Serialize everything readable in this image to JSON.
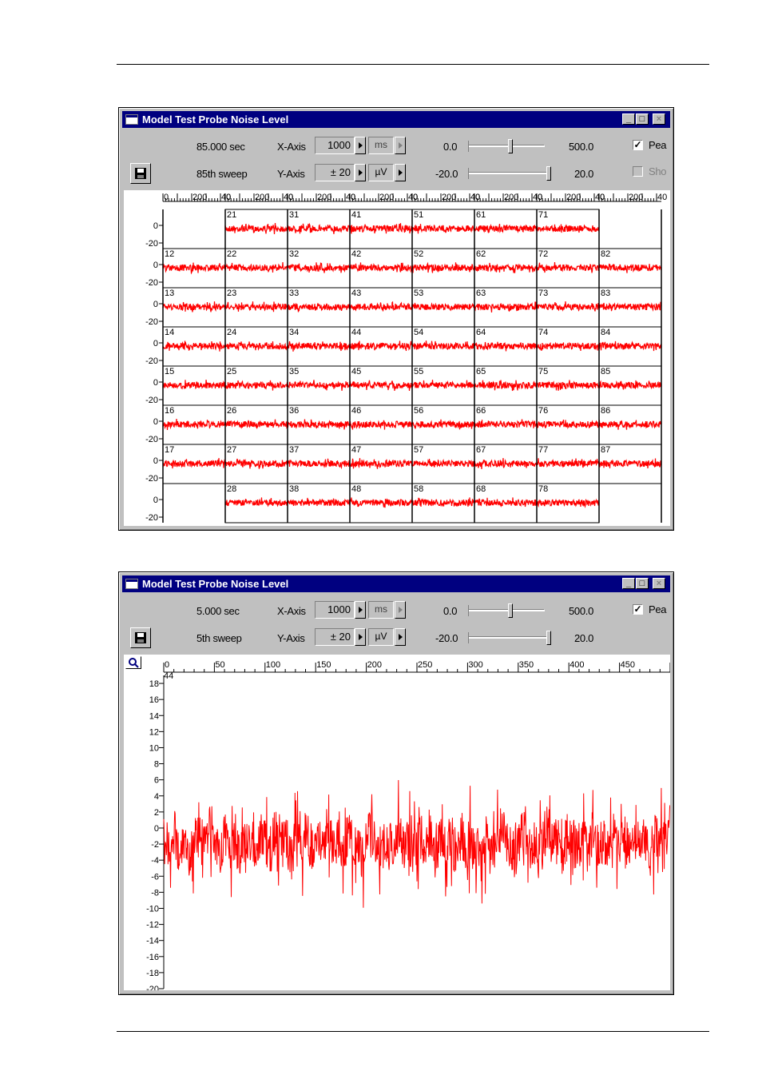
{
  "windows": [
    {
      "title": "Model Test Probe Noise Level",
      "time": "85.000 sec",
      "sweep": "85th sweep",
      "xaxis_label": "X-Axis",
      "xaxis_value": "1000",
      "xaxis_unit": "ms",
      "yaxis_label": "Y-Axis",
      "yaxis_value": "± 20",
      "yaxis_unit": "µV",
      "x_min": "0.0",
      "x_max": "500.0",
      "y_min": "-20.0",
      "y_max": "20.0",
      "x_slider_level": 0.55,
      "y_slider_level": 1.0,
      "peak_label": "Pea",
      "peak_checked": true,
      "show_label": "Sho",
      "show_checked": false,
      "show_enabled": false,
      "grid_xticks": [
        "0",
        "200",
        "40"
      ],
      "grid_yticks": [
        "0",
        "-20"
      ],
      "grid_rows": [
        [
          null,
          "21",
          "31",
          "41",
          "51",
          "61",
          "71",
          null
        ],
        [
          "12",
          "22",
          "32",
          "42",
          "52",
          "62",
          "72",
          "82"
        ],
        [
          "13",
          "23",
          "33",
          "43",
          "53",
          "63",
          "73",
          "83"
        ],
        [
          "14",
          "24",
          "34",
          "44",
          "54",
          "64",
          "74",
          "84"
        ],
        [
          "15",
          "25",
          "35",
          "45",
          "55",
          "65",
          "75",
          "85"
        ],
        [
          "16",
          "26",
          "36",
          "46",
          "56",
          "66",
          "76",
          "86"
        ],
        [
          "17",
          "27",
          "37",
          "47",
          "57",
          "67",
          "77",
          "87"
        ],
        [
          null,
          "28",
          "38",
          "48",
          "58",
          "68",
          "78",
          null
        ]
      ],
      "signal_color": "#ff0000"
    },
    {
      "title": "Model Test Probe Noise Level",
      "time": "5.000 sec",
      "sweep": "5th sweep",
      "xaxis_label": "X-Axis",
      "xaxis_value": "1000",
      "xaxis_unit": "ms",
      "yaxis_label": "Y-Axis",
      "yaxis_value": "± 20",
      "yaxis_unit": "µV",
      "x_min": "0.0",
      "x_max": "500.0",
      "y_min": "-20.0",
      "y_max": "20.0",
      "x_slider_level": 0.55,
      "y_slider_level": 1.0,
      "peak_label": "Pea",
      "peak_checked": true,
      "channel_label": "44",
      "signal_color": "#ff0000"
    }
  ],
  "chart_data": {
    "type": "line",
    "title": "",
    "xlabel": "",
    "ylabel": "",
    "x_ticks": [
      "0",
      "50",
      "100",
      "150",
      "200",
      "250",
      "300",
      "350",
      "400",
      "450"
    ],
    "y_ticks": [
      "18",
      "16",
      "14",
      "12",
      "10",
      "8",
      "6",
      "4",
      "2",
      "0",
      "-2",
      "-4",
      "-6",
      "-8",
      "-10",
      "-12",
      "-14",
      "-16",
      "-18",
      "-20"
    ],
    "xlim": [
      0,
      500
    ],
    "ylim": [
      -20,
      19
    ],
    "series": [
      {
        "values": [
          0,
          -2,
          3,
          -4,
          1,
          -6,
          2,
          0,
          -3,
          4,
          -1,
          -5,
          2,
          -2,
          1,
          -7,
          3,
          0,
          -4,
          2,
          -1,
          -3,
          5,
          -2,
          0,
          -6,
          1,
          -1,
          3,
          -4,
          0,
          -2,
          6,
          -3,
          1,
          -5,
          2,
          -2,
          0,
          -8,
          3,
          1,
          -4,
          2,
          -1,
          -3,
          4,
          -2,
          0,
          -5,
          2,
          -1,
          3,
          -6,
          1,
          -2,
          0,
          -4,
          5,
          -3,
          1,
          -2,
          -7,
          2,
          0,
          -3,
          4,
          -1,
          -2,
          -5,
          3,
          0,
          -4,
          1,
          -2,
          6,
          -3,
          0,
          -5,
          2,
          -1,
          -3,
          1,
          -6,
          4,
          -2,
          0,
          -4,
          2,
          -1,
          3,
          -5,
          1,
          -2,
          0,
          -8,
          2,
          1,
          -3,
          4
        ]
      }
    ],
    "grid": false,
    "legend": "none",
    "color": "#ff0000"
  }
}
